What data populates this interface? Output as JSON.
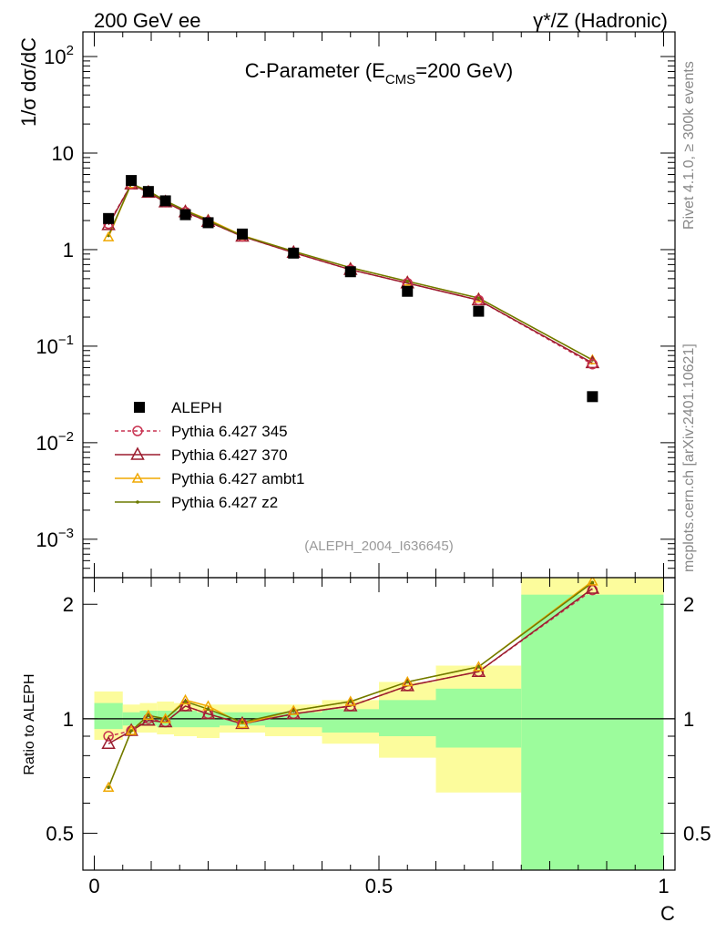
{
  "header": {
    "left": "200 GeV ee",
    "right": "γ*/Z (Hadronic)",
    "side_top": "Rivet 4.1.0, ≥ 300k events",
    "side_bottom": "mcplots.cern.ch [arXiv:2401.10621]"
  },
  "colors": {
    "data": "#000000",
    "p345": "#c83250",
    "p370": "#9b1c2e",
    "ambt1": "#f0a800",
    "z2": "#6b7a00",
    "band_green": "#9cfc9c",
    "band_yellow": "#fcfc9c"
  },
  "chart_data": [
    {
      "type": "line",
      "title": "C-Parameter (E_CMS=200 GeV)",
      "title_parts": {
        "main": "C-Parameter (E",
        "sub": "CMS",
        "tail": "=200 GeV)"
      },
      "xlabel": "C",
      "ylabel": "1/σ  dσ/dC",
      "yscale": "log",
      "ylim": [
        0.0004,
        180
      ],
      "xlim": [
        -0.02,
        1.02
      ],
      "yticks": [
        {
          "v": 0.001,
          "base": "10",
          "exp": "−3"
        },
        {
          "v": 0.01,
          "base": "10",
          "exp": "−2"
        },
        {
          "v": 0.1,
          "base": "10",
          "exp": "−1"
        },
        {
          "v": 1,
          "base": "1",
          "exp": ""
        },
        {
          "v": 10,
          "base": "10",
          "exp": ""
        },
        {
          "v": 100,
          "base": "10",
          "exp": "2"
        }
      ],
      "watermark": "(ALEPH_2004_I636645)",
      "bins": [
        [
          0,
          0.05
        ],
        [
          0.05,
          0.08
        ],
        [
          0.08,
          0.11
        ],
        [
          0.11,
          0.14
        ],
        [
          0.14,
          0.18
        ],
        [
          0.18,
          0.22
        ],
        [
          0.22,
          0.3
        ],
        [
          0.3,
          0.4
        ],
        [
          0.4,
          0.5
        ],
        [
          0.5,
          0.6
        ],
        [
          0.6,
          0.75
        ],
        [
          0.75,
          1.0
        ]
      ],
      "x": [
        0.025,
        0.065,
        0.095,
        0.125,
        0.16,
        0.2,
        0.26,
        0.35,
        0.45,
        0.55,
        0.675,
        0.875
      ],
      "series": [
        {
          "name": "ALEPH",
          "key": "data",
          "marker": "square",
          "values": [
            2.1,
            5.2,
            4.0,
            3.2,
            2.3,
            1.9,
            1.45,
            0.92,
            0.59,
            0.37,
            0.23,
            0.03
          ]
        },
        {
          "name": "Pythia 6.427 345",
          "key": "p345",
          "marker": "circle",
          "dash": true,
          "values": [
            1.85,
            4.75,
            3.95,
            3.1,
            2.45,
            1.95,
            1.37,
            0.93,
            0.62,
            0.45,
            0.3,
            0.065
          ]
        },
        {
          "name": "Pythia 6.427 370",
          "key": "p370",
          "marker": "triangle",
          "values": [
            1.8,
            4.75,
            3.9,
            3.1,
            2.45,
            1.95,
            1.37,
            0.93,
            0.62,
            0.45,
            0.3,
            0.067
          ]
        },
        {
          "name": "Pythia 6.427 ambt1",
          "key": "ambt1",
          "marker": "triangle-small",
          "values": [
            1.35,
            4.8,
            4.05,
            3.2,
            2.55,
            2.05,
            1.4,
            0.96,
            0.65,
            0.47,
            0.315,
            0.072
          ]
        },
        {
          "name": "Pythia 6.427 z2",
          "key": "z2",
          "marker": "dot",
          "values": [
            1.4,
            4.8,
            4.05,
            3.2,
            2.55,
            2.0,
            1.39,
            0.96,
            0.65,
            0.47,
            0.315,
            0.072
          ]
        }
      ]
    },
    {
      "type": "line",
      "ylabel": "Ratio to ALEPH",
      "xlabel": "C",
      "yscale": "log",
      "ylim": [
        0.4,
        2.35
      ],
      "xlim": [
        -0.02,
        1.02
      ],
      "yticks": [
        {
          "v": 0.5,
          "label": "0.5"
        },
        {
          "v": 1,
          "label": "1"
        },
        {
          "v": 2,
          "label": "2"
        }
      ],
      "xticks": [
        {
          "v": 0,
          "label": "0"
        },
        {
          "v": 0.5,
          "label": "0.5"
        },
        {
          "v": 1,
          "label": "1"
        }
      ],
      "bands": {
        "green": [
          [
            0.94,
            1.1
          ],
          [
            0.96,
            1.04
          ],
          [
            0.96,
            1.05
          ],
          [
            0.95,
            1.05
          ],
          [
            0.95,
            1.05
          ],
          [
            0.95,
            1.04
          ],
          [
            0.96,
            1.04
          ],
          [
            0.95,
            1.04
          ],
          [
            0.92,
            1.06
          ],
          [
            0.9,
            1.12
          ],
          [
            0.84,
            1.2
          ],
          [
            0.37,
            2.12
          ]
        ],
        "yellow": [
          [
            0.88,
            1.18
          ],
          [
            0.92,
            1.09
          ],
          [
            0.92,
            1.1
          ],
          [
            0.91,
            1.11
          ],
          [
            0.9,
            1.1
          ],
          [
            0.89,
            1.09
          ],
          [
            0.92,
            1.09
          ],
          [
            0.9,
            1.09
          ],
          [
            0.86,
            1.12
          ],
          [
            0.79,
            1.25
          ],
          [
            0.64,
            1.38
          ],
          [
            0.37,
            2.35
          ]
        ]
      },
      "series": [
        {
          "name": "Pythia 6.427 345",
          "key": "p345",
          "values": [
            0.9,
            0.93,
            1.0,
            0.98,
            1.08,
            1.03,
            0.97,
            1.03,
            1.08,
            1.22,
            1.33,
            2.18
          ]
        },
        {
          "name": "Pythia 6.427 370",
          "key": "p370",
          "values": [
            0.86,
            0.93,
            0.99,
            0.98,
            1.08,
            1.03,
            0.97,
            1.03,
            1.08,
            1.22,
            1.33,
            2.2
          ]
        },
        {
          "name": "Pythia 6.427 ambt1",
          "key": "ambt1",
          "values": [
            0.66,
            0.93,
            1.02,
            1.0,
            1.12,
            1.08,
            0.97,
            1.05,
            1.11,
            1.25,
            1.37,
            2.3
          ]
        },
        {
          "name": "Pythia 6.427 z2",
          "key": "z2",
          "values": [
            0.66,
            0.93,
            1.02,
            1.0,
            1.11,
            1.06,
            0.98,
            1.05,
            1.11,
            1.25,
            1.37,
            2.28
          ]
        }
      ]
    }
  ]
}
